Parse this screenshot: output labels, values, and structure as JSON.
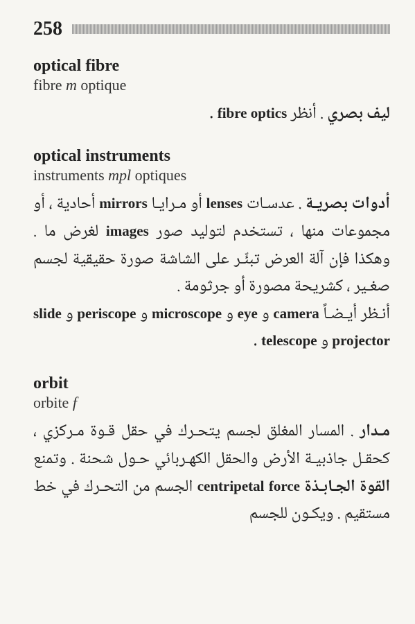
{
  "page_number": "258",
  "entries": [
    {
      "term_en": "optical fibre",
      "term_fr_parts": [
        {
          "text": "fibre ",
          "style": "w"
        },
        {
          "text": "m",
          "style": "i"
        },
        {
          "text": " optique",
          "style": "w"
        }
      ],
      "arabic_html": "<span class='ar-bold'>ليف بصري</span> . أنظر <span class='latin'>fibre optics</span> ."
    },
    {
      "term_en": "optical instruments",
      "term_fr_parts": [
        {
          "text": "instruments ",
          "style": "w"
        },
        {
          "text": "mpl",
          "style": "i"
        },
        {
          "text": " optiques",
          "style": "w"
        }
      ],
      "arabic_html": "<span class='ar-bold'>أدوات بصريـة</span> . عدسـات <span class='latin'>lenses</span> أو مـرايـا <span class='latin'>mirrors</span> أحادية ، أو مجموعات منها ، تستخدم لتوليد صور <span class='latin'>images</span> لغرض ما . وهكذا فإن آلة العرض تبئّـر على الشاشة صورة حقيقية لجسم صغـير ، كشريحة مصورة أو جرثومة .<br>أنـظر أيـضـاً <span class='latin'>camera</span> و <span class='latin'>eye</span> و <span class='latin'>microscope</span> و <span class='latin'>periscope</span> و <span class='latin'>slide projector</span> و <span class='latin'>telescope</span> ."
    },
    {
      "term_en": "orbit",
      "term_fr_parts": [
        {
          "text": "orbite ",
          "style": "w"
        },
        {
          "text": "f",
          "style": "i"
        }
      ],
      "arabic_html": "<span class='ar-bold'>مـدار</span> . المسار المغلق لجسم يتحـرك في حقل قـوة مـركزي ، كحقـل جاذبيـة الأرض والحقل الكهـربائي حـول شحنة . وتمنع <span class='ar-bold'>القوة الجـابـذة</span> <span class='latin'>centripetal force</span> الجسم من التحـرك في خط مستقيم . ويكـون للجسم"
    }
  ]
}
